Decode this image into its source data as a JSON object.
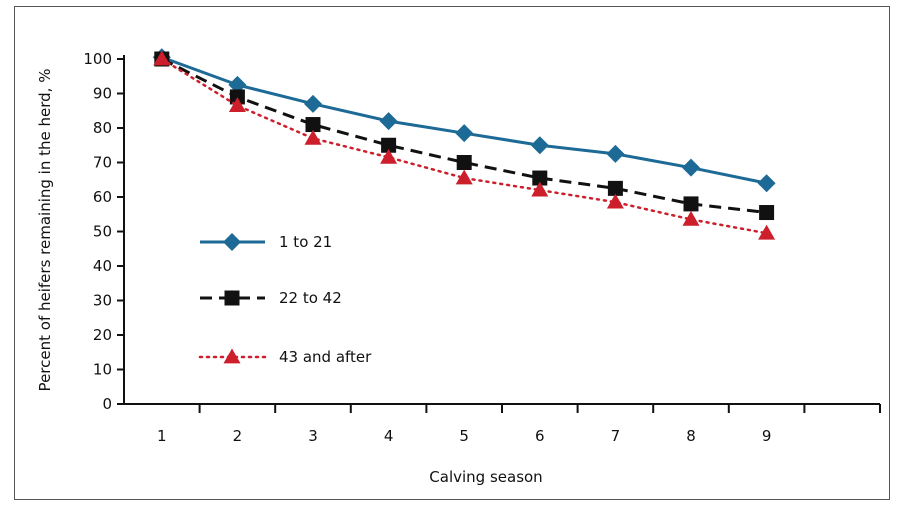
{
  "chart_data": {
    "type": "line",
    "xlabel": "Calving season",
    "ylabel": "Percent of heifers remaining in the herd, %",
    "categories": [
      "1",
      "2",
      "3",
      "4",
      "5",
      "6",
      "7",
      "8",
      "9"
    ],
    "x_ticks": [
      "1",
      "2",
      "3",
      "4",
      "5",
      "6",
      "7",
      "8",
      "9",
      ""
    ],
    "yticks": [
      0,
      10,
      20,
      30,
      40,
      50,
      60,
      70,
      80,
      90,
      100
    ],
    "ylim": [
      0,
      100
    ],
    "grid": false,
    "legend_position": "left",
    "series": [
      {
        "name": "1 to 21",
        "color": "#1d6a96",
        "line_style": "solid",
        "marker": "diamond",
        "values": [
          100.5,
          92.5,
          87,
          82,
          78.5,
          75,
          72.5,
          68.5,
          64
        ]
      },
      {
        "name": "22 to 42",
        "color": "#111111",
        "line_style": "dashed",
        "marker": "square",
        "values": [
          100,
          89,
          81,
          75,
          70,
          65.5,
          62.5,
          58,
          55.5
        ]
      },
      {
        "name": "43 and after",
        "color": "#cc1f2b",
        "line_style": "dotted",
        "marker": "triangle",
        "values": [
          100,
          86.5,
          77,
          71.5,
          65.5,
          62,
          58.5,
          53.5,
          49.5
        ]
      }
    ]
  }
}
